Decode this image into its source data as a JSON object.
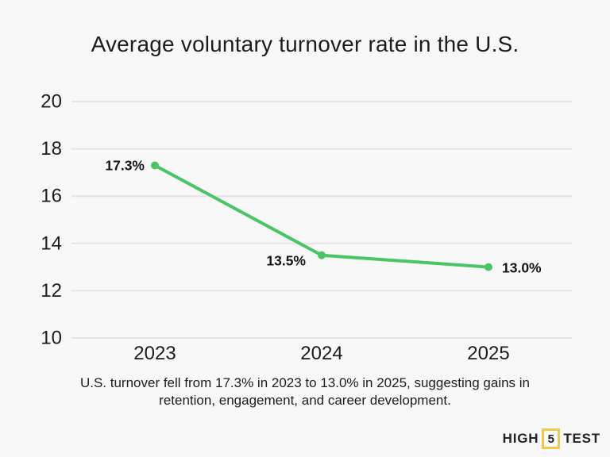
{
  "title": "Average voluntary turnover rate in the U.S.",
  "caption": "U.S. turnover fell from 17.3% in 2023 to 13.0% in 2025, suggesting gains in retention, engagement, and career development.",
  "logo": {
    "left_word": "HIGH",
    "boxed_char": "5",
    "right_word": "TEST",
    "box_color": "#f2c84b"
  },
  "colors": {
    "background": "#f8f8f8",
    "text": "#1b1c1e",
    "grid": "#e4e4e4",
    "line": "#4ac464",
    "point_label": "#141517"
  },
  "chart_data": {
    "type": "line",
    "title": "Average voluntary turnover rate in the U.S.",
    "x": [
      "2023",
      "2024",
      "2025"
    ],
    "series": [
      {
        "name": "Average voluntary turnover rate (%)",
        "values": [
          17.3,
          13.5,
          13.0
        ]
      }
    ],
    "point_labels": [
      "17.3%",
      "13.5%",
      "13.0%"
    ],
    "label_placement": [
      "left",
      "left",
      "right"
    ],
    "xlabel": "",
    "ylabel": "",
    "ylim": [
      10,
      20
    ],
    "yticks": [
      20,
      18,
      16,
      14,
      12,
      10
    ],
    "grid": true,
    "legend": false
  }
}
